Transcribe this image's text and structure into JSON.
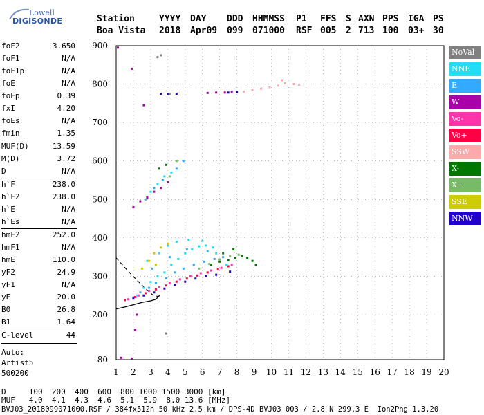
{
  "logo": {
    "line1": "Lowell",
    "line2": "DIGISONDE"
  },
  "header": {
    "labels": [
      "Station",
      "YYYY",
      "DAY",
      "DDD",
      "HHMMSS",
      "P1",
      "FFS",
      "S",
      "AXN",
      "PPS",
      "IGA",
      "PS"
    ],
    "values": [
      "Boa Vista",
      "2018",
      "Apr09",
      "099",
      "071000",
      "RSF",
      "005",
      "2",
      "713",
      "100",
      "03+",
      "30"
    ]
  },
  "sidebar": {
    "groups": [
      [
        [
          "foF2",
          "3.650"
        ],
        [
          "foF1",
          "N/A"
        ],
        [
          "foF1p",
          "N/A"
        ],
        [
          "foE",
          "N/A"
        ],
        [
          "foEp",
          "0.39"
        ],
        [
          "fxI",
          "4.20"
        ],
        [
          "foEs",
          "N/A"
        ],
        [
          "fmin",
          "1.35"
        ]
      ],
      [
        [
          "MUF(D)",
          "13.59"
        ],
        [
          "M(D)",
          "3.72"
        ],
        [
          "D",
          "N/A"
        ]
      ],
      [
        [
          "h`F",
          "238.0"
        ],
        [
          "h`F2",
          "238.0"
        ],
        [
          "h`E",
          "N/A"
        ],
        [
          "h`Es",
          "N/A"
        ]
      ],
      [
        [
          "hmF2",
          "252.0"
        ],
        [
          "hmF1",
          "N/A"
        ],
        [
          "hmE",
          "110.0"
        ],
        [
          "yF2",
          "24.9"
        ],
        [
          "yF1",
          "N/A"
        ],
        [
          "yE",
          "20.0"
        ],
        [
          "B0",
          "26.8"
        ],
        [
          "B1",
          "1.64"
        ]
      ],
      [
        [
          "C-level",
          "44"
        ]
      ]
    ],
    "auto": [
      "Auto:",
      "Artist5",
      "500200"
    ]
  },
  "legend": [
    {
      "label": "NoVal",
      "color": "#808080"
    },
    {
      "label": "NNE",
      "color": "#22ddf5"
    },
    {
      "label": "E",
      "color": "#33aaff"
    },
    {
      "label": "W",
      "color": "#aa00aa"
    },
    {
      "label": "Vo-",
      "color": "#ff33aa"
    },
    {
      "label": "Vo+",
      "color": "#ff0044"
    },
    {
      "label": "SSW",
      "color": "#ffaaaa"
    },
    {
      "label": "X-",
      "color": "#007700"
    },
    {
      "label": "X+",
      "color": "#77bb66"
    },
    {
      "label": "SSE",
      "color": "#cccc00"
    },
    {
      "label": "NNW",
      "color": "#2200cc"
    }
  ],
  "footer": {
    "d_line": "D     100  200  400  600  800 1000 1500 3000 [km]",
    "muf_line": "MUF   4.0  4.1  4.3  4.6  5.1  5.9  8.0 13.6 [MHz]",
    "info_line": "BVJ03_2018099071000.RSF / 384fx512h 50 kHz 2.5 km / DPS-4D BVJ03 003 / 2.8 N 299.3 E  Ion2Png 1.3.20"
  },
  "chart_data": {
    "type": "scatter",
    "x_ticks": [
      1,
      2,
      3,
      4,
      5,
      6,
      7,
      8,
      9,
      10,
      11,
      12,
      13,
      14,
      15,
      16,
      17,
      18,
      19,
      20
    ],
    "y_ticks": [
      80,
      200,
      300,
      400,
      500,
      600,
      700,
      800,
      900
    ],
    "xlim": [
      1,
      20
    ],
    "ylim": [
      80,
      900
    ],
    "grid": true,
    "legend_position": "right",
    "series": [
      {
        "name": "NNE",
        "points": [
          [
            2.2,
            250
          ],
          [
            2.6,
            270
          ],
          [
            3.0,
            285
          ],
          [
            3.4,
            300
          ],
          [
            3.8,
            310
          ],
          [
            4.2,
            330
          ],
          [
            4.6,
            345
          ],
          [
            5.0,
            360
          ],
          [
            5.4,
            370
          ],
          [
            5.8,
            378
          ],
          [
            6.2,
            380
          ],
          [
            6.6,
            375
          ],
          [
            2.8,
            340
          ],
          [
            3.5,
            360
          ],
          [
            4.0,
            380
          ],
          [
            4.5,
            390
          ],
          [
            5.2,
            395
          ],
          [
            6.0,
            392
          ],
          [
            6.8,
            360
          ],
          [
            7.4,
            330
          ],
          [
            3.0,
            520
          ],
          [
            3.4,
            540
          ],
          [
            3.8,
            560
          ],
          [
            4.2,
            570
          ]
        ]
      },
      {
        "name": "E",
        "points": [
          [
            2.0,
            245
          ],
          [
            2.4,
            258
          ],
          [
            2.9,
            270
          ],
          [
            3.3,
            282
          ],
          [
            3.9,
            295
          ],
          [
            4.4,
            310
          ],
          [
            4.9,
            320
          ],
          [
            5.5,
            330
          ],
          [
            6.1,
            338
          ],
          [
            6.7,
            345
          ],
          [
            7.2,
            350
          ],
          [
            3.1,
            320
          ],
          [
            4.1,
            350
          ],
          [
            5.1,
            370
          ],
          [
            6.3,
            365
          ],
          [
            2.7,
            500
          ],
          [
            3.2,
            530
          ],
          [
            3.7,
            550
          ],
          [
            4.5,
            580
          ],
          [
            4.9,
            600
          ]
        ]
      },
      {
        "name": "W",
        "points": [
          [
            1.3,
            85
          ],
          [
            1.9,
            83
          ],
          [
            2.1,
            160
          ],
          [
            2.2,
            200
          ],
          [
            6.3,
            777
          ],
          [
            6.8,
            778
          ],
          [
            7.3,
            778
          ],
          [
            7.7,
            780
          ],
          [
            1.1,
            895
          ],
          [
            1.9,
            840
          ],
          [
            2.6,
            745
          ],
          [
            2.0,
            480
          ],
          [
            2.4,
            495
          ],
          [
            2.8,
            505
          ],
          [
            3.2,
            520
          ],
          [
            3.6,
            530
          ],
          [
            4.0,
            545
          ]
        ]
      },
      {
        "name": "Vo-",
        "points": [
          [
            1.7,
            240
          ],
          [
            2.3,
            250
          ],
          [
            2.9,
            262
          ],
          [
            3.5,
            272
          ],
          [
            4.1,
            282
          ],
          [
            4.7,
            292
          ],
          [
            5.3,
            300
          ],
          [
            5.9,
            308
          ],
          [
            6.5,
            315
          ],
          [
            7.1,
            322
          ],
          [
            7.7,
            330
          ]
        ]
      },
      {
        "name": "Vo+",
        "points": [
          [
            1.5,
            238
          ],
          [
            2.1,
            246
          ],
          [
            2.7,
            256
          ],
          [
            3.3,
            266
          ],
          [
            3.9,
            276
          ],
          [
            4.5,
            286
          ],
          [
            5.1,
            294
          ],
          [
            5.7,
            302
          ],
          [
            6.3,
            310
          ],
          [
            6.9,
            318
          ],
          [
            7.5,
            326
          ]
        ]
      },
      {
        "name": "SSW",
        "points": [
          [
            8.4,
            780
          ],
          [
            8.9,
            784
          ],
          [
            9.4,
            788
          ],
          [
            9.9,
            792
          ],
          [
            10.4,
            796
          ],
          [
            10.8,
            802
          ],
          [
            11.3,
            800
          ],
          [
            11.6,
            798
          ],
          [
            10.6,
            810
          ]
        ]
      },
      {
        "name": "X-",
        "points": [
          [
            6.5,
            330
          ],
          [
            7.0,
            338
          ],
          [
            7.5,
            342
          ],
          [
            7.9,
            348
          ],
          [
            8.3,
            352
          ],
          [
            8.6,
            348
          ],
          [
            8.9,
            340
          ],
          [
            9.1,
            330
          ],
          [
            7.2,
            360
          ],
          [
            7.8,
            370
          ],
          [
            3.5,
            580
          ],
          [
            3.9,
            590
          ]
        ]
      },
      {
        "name": "X+",
        "points": [
          [
            5.8,
            320
          ],
          [
            6.4,
            332
          ],
          [
            7.0,
            344
          ],
          [
            7.6,
            352
          ],
          [
            8.1,
            356
          ],
          [
            4.5,
            600
          ],
          [
            4.1,
            560
          ]
        ]
      },
      {
        "name": "SSE",
        "points": [
          [
            2.5,
            320
          ],
          [
            2.9,
            340
          ],
          [
            3.2,
            360
          ],
          [
            3.6,
            375
          ],
          [
            4.0,
            385
          ],
          [
            3.3,
            330
          ]
        ]
      },
      {
        "name": "NNW",
        "points": [
          [
            2.0,
            242
          ],
          [
            2.6,
            250
          ],
          [
            3.2,
            258
          ],
          [
            3.8,
            268
          ],
          [
            4.4,
            278
          ],
          [
            5.0,
            286
          ],
          [
            5.6,
            294
          ],
          [
            6.2,
            300
          ],
          [
            6.8,
            304
          ],
          [
            7.6,
            312
          ],
          [
            3.6,
            775
          ],
          [
            4.0,
            774
          ],
          [
            4.5,
            775
          ],
          [
            7.5,
            778
          ],
          [
            8.0,
            779
          ]
        ]
      },
      {
        "name": "NoVal",
        "points": [
          [
            3.4,
            870
          ],
          [
            3.6,
            875
          ],
          [
            4.1,
            775
          ],
          [
            3.9,
            150
          ]
        ]
      }
    ],
    "profile_solid": [
      [
        1.0,
        215
      ],
      [
        1.5,
        220
      ],
      [
        2.0,
        226
      ],
      [
        2.5,
        232
      ],
      [
        3.0,
        236
      ],
      [
        3.3,
        240
      ],
      [
        3.55,
        252
      ]
    ],
    "profile_dashed": [
      [
        1.0,
        348
      ],
      [
        1.6,
        318
      ],
      [
        2.2,
        290
      ],
      [
        2.7,
        268
      ],
      [
        3.1,
        252
      ],
      [
        3.5,
        246
      ]
    ]
  }
}
